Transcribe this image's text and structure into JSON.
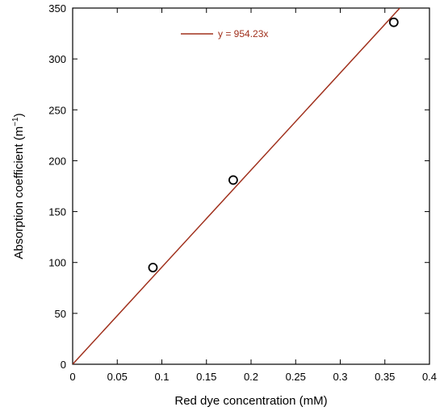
{
  "chart_data": {
    "type": "scatter",
    "xlabel": "Red dye concentration (mM)",
    "ylabel_main": "Absorption coefficient (m",
    "ylabel_sup": "−1",
    "ylabel_close": ")",
    "xlim": [
      0,
      0.4
    ],
    "ylim": [
      0,
      350
    ],
    "xticks": [
      0,
      0.05,
      0.1,
      0.15,
      0.2,
      0.25,
      0.3,
      0.35,
      0.4
    ],
    "xtick_labels": [
      "0",
      "0.05",
      "0.1",
      "0.15",
      "0.2",
      "0.25",
      "0.3",
      "0.35",
      "0.4"
    ],
    "yticks": [
      0,
      50,
      100,
      150,
      200,
      250,
      300,
      350
    ],
    "ytick_labels": [
      "0",
      "50",
      "100",
      "150",
      "200",
      "250",
      "300",
      "350"
    ],
    "grid": false,
    "series": [
      {
        "kind": "points",
        "marker": "open-circle",
        "color": "#000000",
        "x": [
          0.09,
          0.18,
          0.36
        ],
        "y": [
          95,
          181,
          336
        ]
      },
      {
        "kind": "line",
        "name": "y = 954.23x",
        "color": "#a0301c",
        "slope": 954.23,
        "x_range": [
          0,
          0.4
        ]
      }
    ],
    "legend": {
      "position": "top-left",
      "entries": [
        "y = 954.23x"
      ]
    }
  }
}
